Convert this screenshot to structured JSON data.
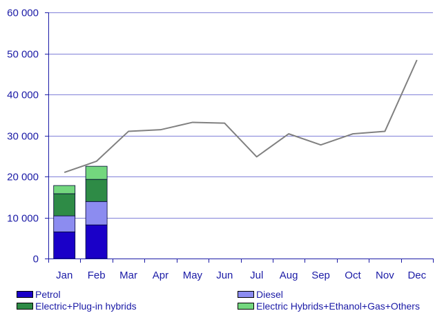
{
  "chart_data": {
    "type": "bar",
    "stacked": true,
    "categories": [
      "Jan",
      "Feb",
      "Mar",
      "Apr",
      "May",
      "Jun",
      "Jul",
      "Aug",
      "Sep",
      "Oct",
      "Nov",
      "Dec"
    ],
    "ylim": [
      0,
      60000
    ],
    "yticks": [
      0,
      10000,
      20000,
      30000,
      40000,
      50000,
      60000
    ],
    "ytick_labels": [
      "0",
      "10 000",
      "20 000",
      "30 000",
      "40 000",
      "50 000",
      "60 000"
    ],
    "grid": true,
    "legend_position": "bottom",
    "series": [
      {
        "name": "Petrol",
        "type": "bar",
        "color": "#1a00c8",
        "values": [
          6500,
          8200,
          null,
          null,
          null,
          null,
          null,
          null,
          null,
          null,
          null,
          null
        ]
      },
      {
        "name": "Diesel",
        "type": "bar",
        "color": "#8c8cf0",
        "values": [
          3900,
          5700,
          null,
          null,
          null,
          null,
          null,
          null,
          null,
          null,
          null,
          null
        ]
      },
      {
        "name": "Electric+Plug-in hybrids",
        "type": "bar",
        "color": "#2e8b46",
        "values": [
          5400,
          5400,
          null,
          null,
          null,
          null,
          null,
          null,
          null,
          null,
          null,
          null
        ]
      },
      {
        "name": "Electric Hybrids+Ethanol+Gas+Others",
        "type": "bar",
        "color": "#73d77e",
        "values": [
          2000,
          3200,
          null,
          null,
          null,
          null,
          null,
          null,
          null,
          null,
          null,
          null
        ]
      },
      {
        "type": "line",
        "color": "#808080",
        "values": [
          21000,
          23700,
          31000,
          31400,
          33200,
          33000,
          24800,
          30400,
          27700,
          30400,
          31000,
          48400
        ]
      }
    ]
  }
}
